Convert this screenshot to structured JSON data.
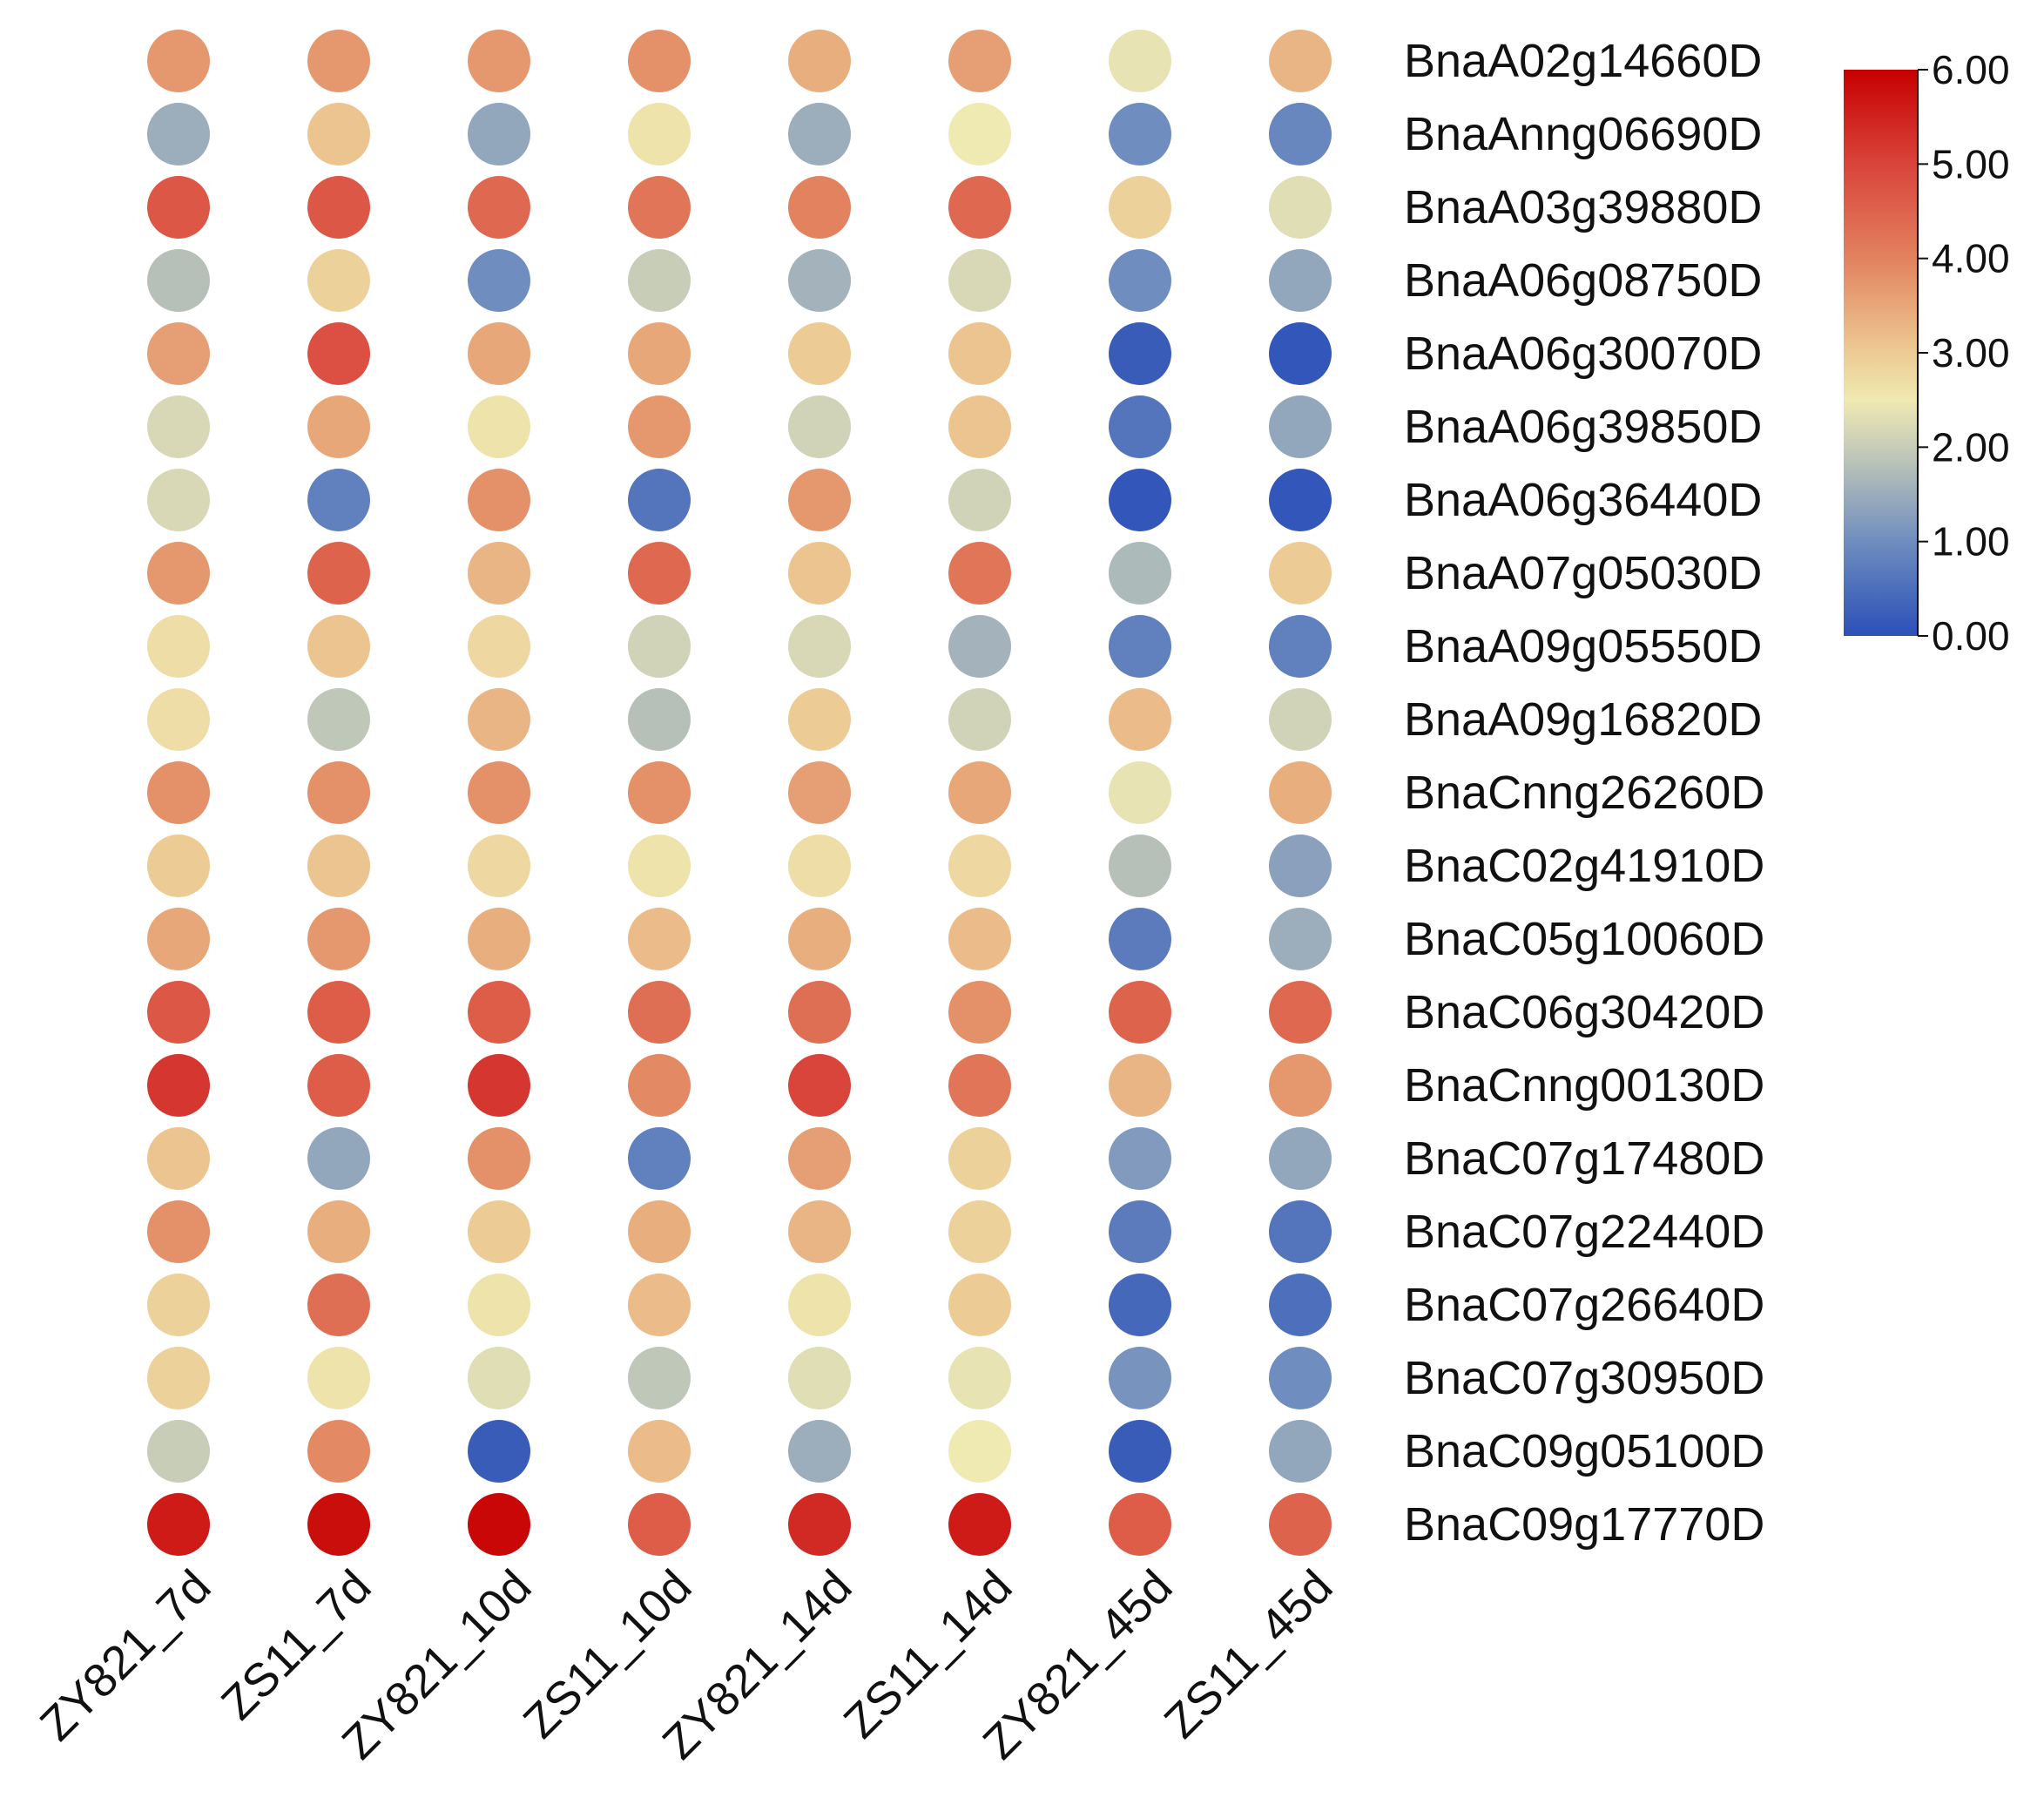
{
  "chart_data": {
    "type": "heatmap",
    "title": "",
    "xlabel": "",
    "ylabel": "",
    "categories": [
      "ZY821_7d",
      "ZS11_7d",
      "ZY821_10d",
      "ZS11_10d",
      "ZY821_14d",
      "ZS11_14d",
      "ZY821_45d",
      "ZS11_45d"
    ],
    "genes": [
      "BnaA02g14660D",
      "BnaAnng06690D",
      "BnaA03g39880D",
      "BnaA06g08750D",
      "BnaA06g30070D",
      "BnaA06g39850D",
      "BnaA06g36440D",
      "BnaA07g05030D",
      "BnaA09g05550D",
      "BnaA09g16820D",
      "BnaCnng26260D",
      "BnaC02g41910D",
      "BnaC05g10060D",
      "BnaC06g30420D",
      "BnaCnng00130D",
      "BnaC07g17480D",
      "BnaC07g22440D",
      "BnaC07g26640D",
      "BnaC07g30950D",
      "BnaC09g05100D",
      "BnaC09g17770D"
    ],
    "values": [
      [
        3.7,
        3.7,
        3.7,
        3.8,
        3.4,
        3.6,
        2.4,
        3.3
      ],
      [
        1.5,
        3.1,
        1.4,
        2.6,
        1.5,
        2.5,
        1.0,
        0.9
      ],
      [
        4.7,
        4.7,
        4.4,
        4.2,
        4.0,
        4.4,
        2.9,
        2.3
      ],
      [
        1.8,
        2.9,
        1.0,
        2.0,
        1.6,
        2.2,
        1.0,
        1.4
      ],
      [
        3.6,
        4.8,
        3.5,
        3.5,
        3.0,
        3.1,
        0.2,
        0.1
      ],
      [
        2.2,
        3.5,
        2.6,
        3.7,
        2.1,
        3.1,
        0.6,
        1.4
      ],
      [
        2.2,
        0.8,
        3.8,
        0.6,
        3.7,
        2.1,
        0.1,
        0.1
      ],
      [
        3.7,
        4.5,
        3.3,
        4.4,
        3.1,
        4.2,
        1.7,
        3.0
      ],
      [
        2.7,
        3.1,
        2.8,
        2.1,
        2.2,
        1.6,
        0.8,
        0.8
      ],
      [
        2.7,
        1.9,
        3.3,
        1.8,
        3.0,
        2.1,
        3.2,
        2.1
      ],
      [
        3.8,
        3.8,
        3.8,
        3.8,
        3.6,
        3.5,
        2.4,
        3.4
      ],
      [
        3.0,
        3.1,
        2.8,
        2.6,
        2.7,
        2.8,
        1.8,
        1.3
      ],
      [
        3.5,
        3.7,
        3.4,
        3.2,
        3.4,
        3.2,
        0.7,
        1.5
      ],
      [
        4.7,
        4.6,
        4.6,
        4.3,
        4.3,
        3.8,
        4.5,
        4.4
      ],
      [
        5.2,
        4.6,
        5.2,
        3.9,
        5.0,
        4.2,
        3.3,
        3.7
      ],
      [
        3.1,
        1.4,
        3.8,
        0.8,
        3.6,
        2.9,
        1.2,
        1.4
      ],
      [
        3.8,
        3.4,
        3.0,
        3.4,
        3.3,
        2.9,
        0.7,
        0.6
      ],
      [
        2.9,
        4.3,
        2.6,
        3.2,
        2.6,
        3.0,
        0.4,
        0.5
      ],
      [
        2.9,
        2.6,
        2.3,
        1.9,
        2.3,
        2.4,
        1.1,
        1.0
      ],
      [
        2.0,
        3.9,
        0.2,
        3.2,
        1.5,
        2.5,
        0.2,
        1.4
      ],
      [
        5.6,
        5.8,
        5.9,
        4.6,
        5.4,
        5.6,
        4.6,
        4.5
      ]
    ],
    "colorbar": {
      "min": 0,
      "max": 6,
      "ticks": [
        "0.00",
        "1.00",
        "2.00",
        "3.00",
        "4.00",
        "5.00",
        "6.00"
      ],
      "stops": [
        {
          "value": 0.0,
          "color": "#2b50b8"
        },
        {
          "value": 1.0,
          "color": "#6f8dbf"
        },
        {
          "value": 2.0,
          "color": "#c8cdb8"
        },
        {
          "value": 2.5,
          "color": "#efe9b2"
        },
        {
          "value": 3.0,
          "color": "#edcb94"
        },
        {
          "value": 4.0,
          "color": "#e2825e"
        },
        {
          "value": 5.0,
          "color": "#d9443b"
        },
        {
          "value": 6.0,
          "color": "#c60000"
        }
      ]
    },
    "legend_position": "top-right",
    "grid": false
  }
}
